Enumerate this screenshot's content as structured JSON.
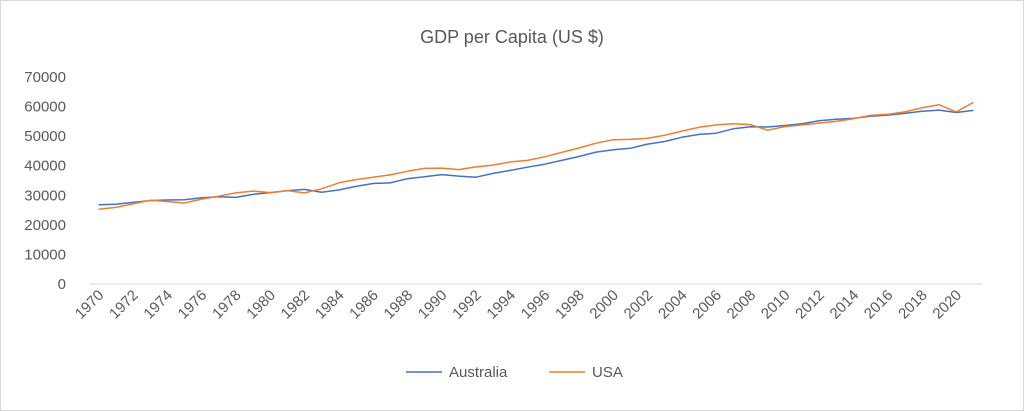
{
  "chart_data": {
    "type": "line",
    "title": "GDP per Capita (US $)",
    "xlabel": "",
    "ylabel": "",
    "ylim": [
      0,
      70000
    ],
    "yticks": [
      0,
      10000,
      20000,
      30000,
      40000,
      50000,
      60000,
      70000
    ],
    "yticklabels": [
      "0",
      "10000",
      "20000",
      "30000",
      "40000",
      "50000",
      "60000",
      "70000"
    ],
    "x": [
      1970,
      1971,
      1972,
      1973,
      1974,
      1975,
      1976,
      1977,
      1978,
      1979,
      1980,
      1981,
      1982,
      1983,
      1984,
      1985,
      1986,
      1987,
      1988,
      1989,
      1990,
      1991,
      1992,
      1993,
      1994,
      1995,
      1996,
      1997,
      1998,
      1999,
      2000,
      2001,
      2002,
      2003,
      2004,
      2005,
      2006,
      2007,
      2008,
      2009,
      2010,
      2011,
      2012,
      2013,
      2014,
      2015,
      2016,
      2017,
      2018,
      2019,
      2020,
      2021
    ],
    "xticklabels": [
      "1970",
      "1972",
      "1974",
      "1976",
      "1978",
      "1980",
      "1982",
      "1984",
      "1986",
      "1988",
      "1990",
      "1992",
      "1994",
      "1996",
      "1998",
      "2000",
      "2002",
      "2004",
      "2006",
      "2008",
      "2010",
      "2012",
      "2014",
      "2016",
      "2018",
      "2020"
    ],
    "legend_position": "bottom",
    "gridlines": false,
    "series": [
      {
        "name": "Australia",
        "color": "#4472C4",
        "values": [
          26800,
          27000,
          27600,
          28200,
          28400,
          28500,
          29200,
          29500,
          29300,
          30300,
          30900,
          31500,
          32000,
          31000,
          31800,
          33000,
          34000,
          34200,
          35600,
          36300,
          37000,
          36500,
          36100,
          37400,
          38400,
          39500,
          40500,
          41800,
          43100,
          44600,
          45400,
          45900,
          47300,
          48200,
          49600,
          50600,
          51000,
          52500,
          53200,
          53100,
          53600,
          54200,
          55200,
          55700,
          56000,
          56700,
          57100,
          57700,
          58400,
          58800,
          58000,
          58700
        ]
      },
      {
        "name": "USA",
        "color": "#ED7D31",
        "values": [
          25300,
          25900,
          27100,
          28300,
          27900,
          27400,
          28700,
          29700,
          30800,
          31400,
          30900,
          31600,
          30800,
          32200,
          34200,
          35300,
          36100,
          36900,
          38100,
          39100,
          39200,
          38700,
          39600,
          40200,
          41300,
          41800,
          43000,
          44500,
          46000,
          47600,
          48800,
          48900,
          49300,
          50300,
          51700,
          53000,
          53800,
          54200,
          53900,
          52000,
          53200,
          53800,
          54400,
          55000,
          55900,
          57000,
          57400,
          58200,
          59600,
          60600,
          58200,
          61400
        ]
      }
    ]
  }
}
